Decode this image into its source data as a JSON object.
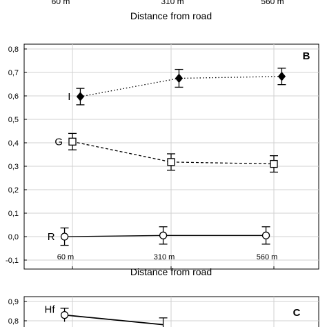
{
  "top_fragment": {
    "tick_labels": [
      "60 m",
      "310 m",
      "560 m"
    ],
    "xlabel": "Distance from road"
  },
  "chart_data": [
    {
      "panel": "B",
      "type": "line",
      "xlabel": "Distance from road",
      "ylabel": "",
      "categories": [
        "60 m",
        "310 m",
        "560 m"
      ],
      "ylim": [
        -0.1,
        0.8
      ],
      "yticks": [
        "-0,1",
        "0,0",
        "0,1",
        "0,2",
        "0,3",
        "0,4",
        "0,5",
        "0,6",
        "0,7",
        "0,8"
      ],
      "grid": true,
      "series": [
        {
          "name": "I",
          "marker": "filled-diamond",
          "line_style": "dotted",
          "color": "#000000",
          "x_offsets": [
            0.08,
            0.08,
            0.08
          ],
          "values": [
            0.597,
            0.675,
            0.683
          ],
          "error": [
            0.035,
            0.038,
            0.035
          ]
        },
        {
          "name": "G",
          "marker": "open-square",
          "line_style": "dashed",
          "color": "#000000",
          "x_offsets": [
            0,
            0,
            0
          ],
          "values": [
            0.405,
            0.318,
            0.31
          ],
          "error": [
            0.035,
            0.035,
            0.035
          ]
        },
        {
          "name": "R",
          "marker": "open-circle",
          "line_style": "solid",
          "color": "#000000",
          "x_offsets": [
            -0.08,
            -0.08,
            -0.08
          ],
          "values": [
            0.0,
            0.005,
            0.005
          ],
          "error": [
            0.037,
            0.037,
            0.037
          ]
        }
      ]
    },
    {
      "panel": "C",
      "type": "line",
      "partial": true,
      "xlabel": "",
      "ylabel": "",
      "ylim_visible": [
        0.8,
        0.9
      ],
      "yticks": [
        "0,9",
        "0,8"
      ],
      "grid": true,
      "series": [
        {
          "name": "Hf",
          "marker": "open-circle",
          "line_style": "solid",
          "color": "#000000",
          "x_offsets": [
            -0.08,
            -0.08
          ],
          "values": [
            0.83,
            0.78
          ],
          "error": [
            0.035,
            0.035
          ]
        }
      ]
    }
  ]
}
